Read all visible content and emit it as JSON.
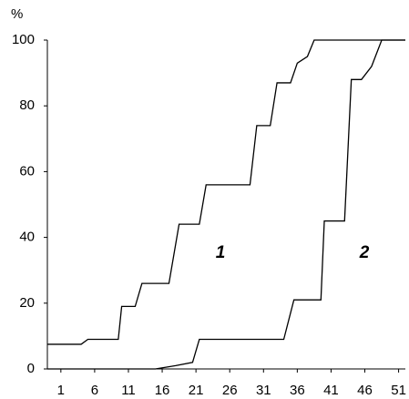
{
  "chart_data": {
    "type": "line",
    "y_label": "%",
    "series": [
      {
        "name": "1",
        "color": "#000000",
        "x": [
          -1,
          4,
          5,
          9.5,
          10,
          12,
          13,
          17,
          18.5,
          21.5,
          22.5,
          29,
          30,
          32,
          33,
          35,
          36,
          37.5,
          38.5,
          52
        ],
        "values": [
          7.5,
          7.5,
          9,
          9,
          19,
          19,
          26,
          26,
          44,
          44,
          56,
          56,
          74,
          74,
          87,
          87,
          93,
          95,
          100,
          100
        ]
      },
      {
        "name": "2",
        "color": "#000000",
        "x": [
          -1,
          15,
          18,
          20.5,
          21.5,
          34,
          35.5,
          39.5,
          40,
          43,
          44,
          45.5,
          47,
          48.5,
          52
        ],
        "values": [
          0,
          0,
          1,
          2,
          9,
          9,
          21,
          21,
          45,
          45,
          88,
          88,
          92,
          100,
          100
        ]
      }
    ],
    "xlim": [
      -1,
      52
    ],
    "ylim": [
      0,
      100
    ],
    "xticks": [
      1,
      6,
      11,
      16,
      21,
      26,
      31,
      36,
      41,
      46,
      51
    ],
    "yticks": [
      0,
      20,
      40,
      60,
      80,
      100
    ]
  }
}
